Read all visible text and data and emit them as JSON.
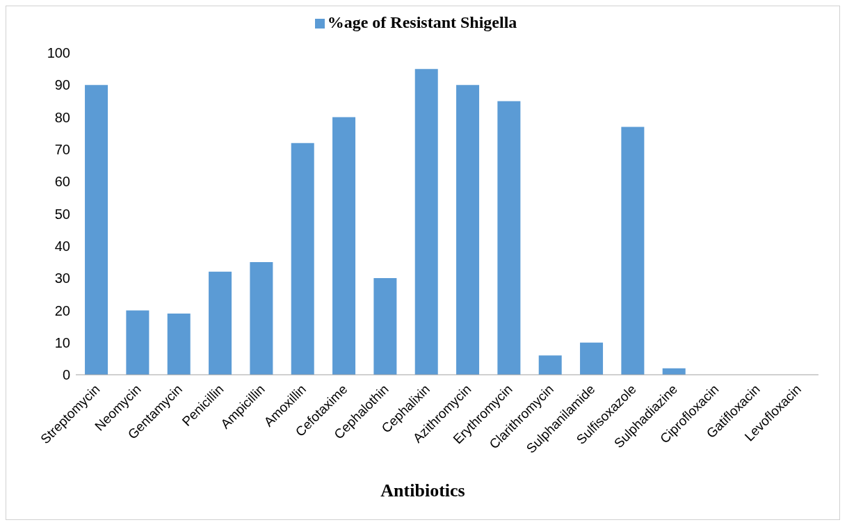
{
  "chart_data": {
    "type": "bar",
    "xlabel": "Antibiotics",
    "categories": [
      "Streptomycin",
      "Neomycin",
      "Gentamycin",
      "Penicillin",
      "Ampicillin",
      "Amoxillin",
      "Cefotaxime",
      "Cephalothin",
      "Cephalixin",
      "Azithromycin",
      "Erythromycin",
      "Clarithromycin",
      "Sulphanilamide",
      "Sulfisoxazole",
      "Sulphadiazine",
      "Ciprofloxacin",
      "Gatifloxacin",
      "Levofloxacin"
    ],
    "series": [
      {
        "name": "%age of Resistant Shigella",
        "color": "#5b9bd5",
        "values": [
          90,
          20,
          19,
          32,
          35,
          72,
          80,
          30,
          95,
          90,
          85,
          6,
          10,
          77,
          2,
          0,
          0,
          0
        ]
      }
    ],
    "ylim": [
      0,
      100
    ],
    "yticks": [
      0,
      10,
      20,
      30,
      40,
      50,
      60,
      70,
      80,
      90,
      100
    ],
    "grid": false,
    "legend": "top"
  }
}
